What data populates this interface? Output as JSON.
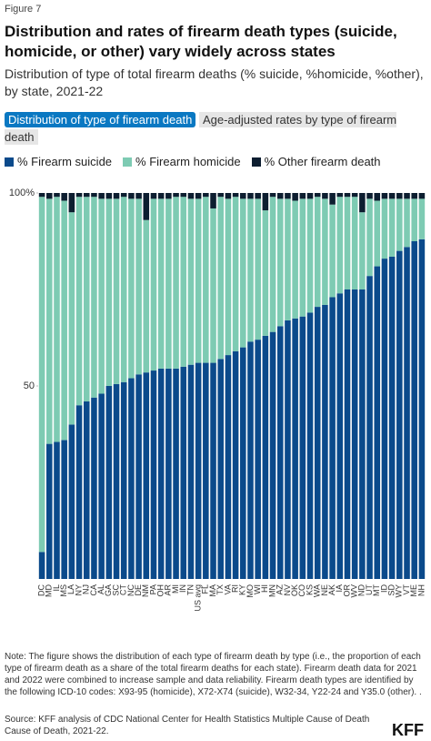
{
  "header": {
    "figure_label": "Figure 7",
    "title": "Distribution and rates of firearm death types (suicide, homicide, or other) vary widely across states",
    "subtitle": "Distribution of type of total firearm deaths (% suicide, %homicide, %other), by state, 2021-22"
  },
  "tabs": [
    "Distribution of type of firearm death",
    "Age-adjusted rates by type of firearm death"
  ],
  "chart_data": {
    "type": "stacked_bar",
    "categories": [
      "DC",
      "MD",
      "IL",
      "MS",
      "LA",
      "NY",
      "NJ",
      "CA",
      "AL",
      "GA",
      "SC",
      "CT",
      "NC",
      "DE",
      "NM",
      "PA",
      "OH",
      "AR",
      "MI",
      "IN",
      "TN",
      "US avg",
      "FL",
      "MA",
      "TX",
      "VA",
      "RI",
      "KY",
      "MO",
      "WI",
      "HI",
      "MN",
      "AZ",
      "NV",
      "OK",
      "CO",
      "KS",
      "WA",
      "NE",
      "AK",
      "IA",
      "OR",
      "WV",
      "ND",
      "UT",
      "MT",
      "ID",
      "SD",
      "WY",
      "VT",
      "ME",
      "NH"
    ],
    "series": [
      {
        "name": "% Firearm suicide",
        "color": "#0b4a8b",
        "values": [
          7,
          35,
          35.5,
          36,
          40,
          45,
          46,
          47,
          48,
          50,
          50.5,
          51,
          52,
          53,
          53.5,
          54,
          54.5,
          54.5,
          54.5,
          55,
          55.5,
          56,
          56,
          56,
          57,
          58,
          59,
          60,
          61.5,
          62,
          63,
          64,
          65.5,
          67,
          67.5,
          68,
          69,
          70.5,
          71,
          73,
          74,
          75,
          75,
          75,
          78.5,
          81,
          83,
          83.5,
          85,
          86,
          87.5,
          88
        ]
      },
      {
        "name": "% Firearm homicide",
        "color": "#7ecbb3",
        "values": [
          92,
          63.5,
          63.5,
          62,
          55,
          54,
          53,
          52,
          50.5,
          48.5,
          48,
          48,
          46.5,
          45.5,
          39.5,
          44.5,
          44,
          44,
          44.5,
          44,
          43,
          42.5,
          43,
          40,
          42,
          40.5,
          40,
          38.5,
          37,
          36.5,
          32.5,
          35,
          33,
          31.5,
          30.5,
          30.5,
          29.5,
          28.5,
          27.5,
          24,
          25,
          24,
          24,
          20,
          20,
          17,
          15.5,
          15,
          13.5,
          12.5,
          11,
          10.5
        ]
      },
      {
        "name": "% Other firearm death",
        "color": "#0d1e30",
        "values": [
          1,
          1.5,
          1,
          2,
          5,
          1,
          1,
          1,
          1.5,
          1.5,
          1.5,
          1,
          1.5,
          1.5,
          7,
          1.5,
          1.5,
          1.5,
          1,
          1,
          1.5,
          1.5,
          1,
          4,
          1,
          1.5,
          1,
          1.5,
          1.5,
          1.5,
          4.5,
          1,
          1.5,
          1.5,
          2,
          1.5,
          1.5,
          1,
          1.5,
          3,
          1,
          1,
          1,
          5,
          1.5,
          2,
          1.5,
          1.5,
          1.5,
          1.5,
          1.5,
          1.5
        ]
      }
    ],
    "ylim": [
      0,
      100
    ],
    "yticks": [
      50,
      {
        "value": 100,
        "label": "100%"
      }
    ]
  },
  "footer": {
    "note": "Note: The figure shows the distribution of each type of firearm death by type (i.e., the proportion of each type of firearm death as a share of the total firearm deaths for each state). Firearm death data for 2021 and 2022 were combined to increase sample and data reliability. Firearm death types are identified by the following ICD-10 codes: X93-95 (homicide), X72-X74 (suicide), W32-34, Y22-24 and Y35.0 (other). .",
    "source": "Source: KFF analysis of CDC National Center for Health Statistics Multiple Cause of Death Cause of Death, 2021-22.",
    "logo": "KFF"
  }
}
